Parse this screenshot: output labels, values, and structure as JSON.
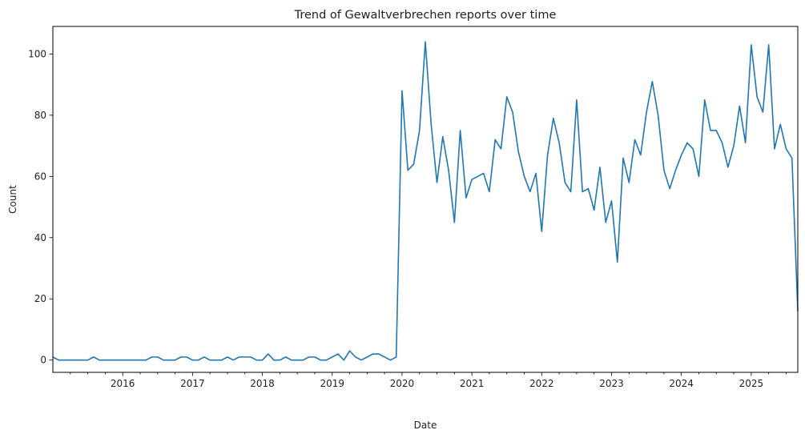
{
  "chart_data": {
    "type": "line",
    "title": "Trend of Gewaltverbrechen reports over time",
    "xlabel": "Date",
    "ylabel": "Count",
    "grid": false,
    "legend": "none",
    "line_color": "#1f77b4",
    "x_range": [
      "2015-01",
      "2025-09"
    ],
    "ylim": [
      -4,
      109
    ],
    "x_ticks": [
      "2016",
      "2017",
      "2018",
      "2019",
      "2020",
      "2021",
      "2022",
      "2023",
      "2024",
      "2025"
    ],
    "y_ticks": [
      0,
      20,
      40,
      60,
      80,
      100
    ],
    "series": [
      {
        "x": [
          "2015-01",
          "2015-02",
          "2015-03",
          "2015-04",
          "2015-05",
          "2015-06",
          "2015-07",
          "2015-08",
          "2015-09",
          "2015-10",
          "2015-11",
          "2015-12",
          "2016-01",
          "2016-02",
          "2016-03",
          "2016-04",
          "2016-05",
          "2016-06",
          "2016-07",
          "2016-08",
          "2016-09",
          "2016-10",
          "2016-11",
          "2016-12",
          "2017-01",
          "2017-02",
          "2017-03",
          "2017-04",
          "2017-05",
          "2017-06",
          "2017-07",
          "2017-08",
          "2017-09",
          "2017-10",
          "2017-11",
          "2017-12",
          "2018-01",
          "2018-02",
          "2018-03",
          "2018-04",
          "2018-05",
          "2018-06",
          "2018-07",
          "2018-08",
          "2018-09",
          "2018-10",
          "2018-11",
          "2018-12",
          "2019-01",
          "2019-02",
          "2019-03",
          "2019-04",
          "2019-05",
          "2019-06",
          "2019-07",
          "2019-08",
          "2019-09",
          "2019-10",
          "2019-11",
          "2019-12",
          "2020-01",
          "2020-02",
          "2020-03",
          "2020-04",
          "2020-05",
          "2020-06",
          "2020-07",
          "2020-08",
          "2020-09",
          "2020-10",
          "2020-11",
          "2020-12",
          "2021-01",
          "2021-02",
          "2021-03",
          "2021-04",
          "2021-05",
          "2021-06",
          "2021-07",
          "2021-08",
          "2021-09",
          "2021-10",
          "2021-11",
          "2021-12",
          "2022-01",
          "2022-02",
          "2022-03",
          "2022-04",
          "2022-05",
          "2022-06",
          "2022-07",
          "2022-08",
          "2022-09",
          "2022-10",
          "2022-11",
          "2022-12",
          "2023-01",
          "2023-02",
          "2023-03",
          "2023-04",
          "2023-05",
          "2023-06",
          "2023-07",
          "2023-08",
          "2023-09",
          "2023-10",
          "2023-11",
          "2023-12",
          "2024-01",
          "2024-02",
          "2024-03",
          "2024-04",
          "2024-05",
          "2024-06",
          "2024-07",
          "2024-08",
          "2024-09",
          "2024-10",
          "2024-11",
          "2024-12",
          "2025-01",
          "2025-02",
          "2025-03",
          "2025-04",
          "2025-05",
          "2025-06",
          "2025-07",
          "2025-08",
          "2025-09"
        ],
        "values": [
          1,
          0,
          0,
          0,
          0,
          0,
          0,
          1,
          0,
          0,
          0,
          0,
          0,
          0,
          0,
          0,
          0,
          1,
          1,
          0,
          0,
          0,
          1,
          1,
          0,
          0,
          1,
          0,
          0,
          0,
          1,
          0,
          1,
          1,
          1,
          0,
          0,
          2,
          0,
          0,
          1,
          0,
          0,
          0,
          1,
          1,
          0,
          0,
          1,
          2,
          0,
          3,
          1,
          0,
          1,
          2,
          2,
          1,
          0,
          1,
          88,
          62,
          64,
          75,
          104,
          77,
          58,
          73,
          62,
          45,
          75,
          53,
          59,
          60,
          61,
          55,
          72,
          69,
          86,
          81,
          68,
          60,
          55,
          61,
          42,
          67,
          79,
          71,
          58,
          55,
          85,
          55,
          56,
          49,
          63,
          45,
          52,
          32,
          66,
          58,
          72,
          67,
          81,
          91,
          80,
          62,
          56,
          62,
          67,
          71,
          69,
          60,
          85,
          75,
          75,
          71,
          63,
          70,
          83,
          71,
          103,
          86,
          81,
          103,
          69,
          77,
          69,
          66,
          16
        ]
      }
    ]
  }
}
